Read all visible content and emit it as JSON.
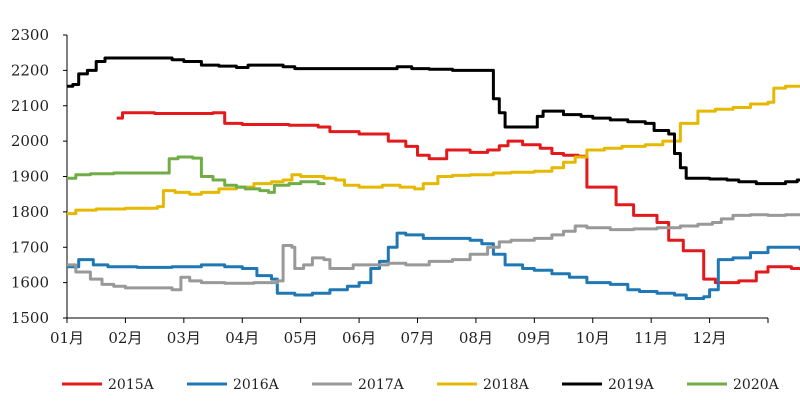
{
  "chart_data": {
    "type": "line",
    "title": "",
    "xlabel": "",
    "ylabel": "",
    "x_ticks": [
      "01月",
      "02月",
      "03月",
      "04月",
      "05月",
      "06月",
      "07月",
      "08月",
      "09月",
      "10月",
      "11月",
      "12月"
    ],
    "ylim": [
      1500,
      2300
    ],
    "y_ticks": [
      1500,
      1600,
      1700,
      1800,
      1900,
      2000,
      2100,
      2200,
      2300
    ],
    "grid": false,
    "legend_position": "bottom",
    "series": [
      {
        "name": "2015A",
        "color": "#e31a1c",
        "points": [
          [
            0.85,
            2065
          ],
          [
            0.95,
            2080
          ],
          [
            1.5,
            2078
          ],
          [
            2.1,
            2078
          ],
          [
            2.5,
            2080
          ],
          [
            2.7,
            2050
          ],
          [
            3.0,
            2047
          ],
          [
            3.8,
            2045
          ],
          [
            4.3,
            2040
          ],
          [
            4.5,
            2027
          ],
          [
            5.0,
            2020
          ],
          [
            5.5,
            2000
          ],
          [
            5.8,
            1985
          ],
          [
            6.0,
            1960
          ],
          [
            6.2,
            1950
          ],
          [
            6.5,
            1975
          ],
          [
            6.9,
            1968
          ],
          [
            7.2,
            1975
          ],
          [
            7.4,
            1987
          ],
          [
            7.55,
            2000
          ],
          [
            7.8,
            1990
          ],
          [
            8.1,
            1980
          ],
          [
            8.3,
            1965
          ],
          [
            8.5,
            1960
          ],
          [
            8.75,
            1957
          ],
          [
            8.9,
            1870
          ],
          [
            9.4,
            1820
          ],
          [
            9.7,
            1790
          ],
          [
            10.1,
            1770
          ],
          [
            10.3,
            1720
          ],
          [
            10.55,
            1690
          ],
          [
            10.9,
            1610
          ],
          [
            11.1,
            1600
          ],
          [
            11.5,
            1605
          ],
          [
            11.8,
            1630
          ],
          [
            12.0,
            1645
          ],
          [
            12.4,
            1640
          ],
          [
            12.6,
            1650
          ]
        ]
      },
      {
        "name": "2016A",
        "color": "#1f78b4",
        "points": [
          [
            0.0,
            1645
          ],
          [
            0.2,
            1665
          ],
          [
            0.45,
            1650
          ],
          [
            0.7,
            1645
          ],
          [
            1.2,
            1643
          ],
          [
            1.8,
            1645
          ],
          [
            2.3,
            1650
          ],
          [
            2.7,
            1645
          ],
          [
            3.0,
            1640
          ],
          [
            3.25,
            1620
          ],
          [
            3.5,
            1610
          ],
          [
            3.6,
            1570
          ],
          [
            3.9,
            1565
          ],
          [
            4.2,
            1570
          ],
          [
            4.5,
            1580
          ],
          [
            4.8,
            1590
          ],
          [
            5.0,
            1600
          ],
          [
            5.2,
            1640
          ],
          [
            5.35,
            1660
          ],
          [
            5.5,
            1700
          ],
          [
            5.65,
            1740
          ],
          [
            5.8,
            1735
          ],
          [
            6.1,
            1725
          ],
          [
            6.5,
            1725
          ],
          [
            6.9,
            1720
          ],
          [
            7.1,
            1710
          ],
          [
            7.3,
            1680
          ],
          [
            7.5,
            1650
          ],
          [
            7.8,
            1640
          ],
          [
            8.0,
            1635
          ],
          [
            8.3,
            1625
          ],
          [
            8.6,
            1615
          ],
          [
            8.9,
            1600
          ],
          [
            9.3,
            1595
          ],
          [
            9.6,
            1580
          ],
          [
            9.8,
            1575
          ],
          [
            10.1,
            1570
          ],
          [
            10.4,
            1565
          ],
          [
            10.6,
            1555
          ],
          [
            10.9,
            1560
          ],
          [
            11.0,
            1580
          ],
          [
            11.15,
            1665
          ],
          [
            11.4,
            1670
          ],
          [
            11.7,
            1685
          ],
          [
            12.0,
            1700
          ],
          [
            12.3,
            1700
          ],
          [
            12.55,
            1695
          ],
          [
            12.65,
            1665
          ]
        ]
      },
      {
        "name": "2017A",
        "color": "#999999",
        "points": [
          [
            0.0,
            1650
          ],
          [
            0.15,
            1630
          ],
          [
            0.4,
            1610
          ],
          [
            0.6,
            1595
          ],
          [
            0.8,
            1590
          ],
          [
            1.0,
            1585
          ],
          [
            1.5,
            1585
          ],
          [
            1.8,
            1580
          ],
          [
            1.95,
            1615
          ],
          [
            2.1,
            1605
          ],
          [
            2.3,
            1600
          ],
          [
            2.7,
            1598
          ],
          [
            3.2,
            1600
          ],
          [
            3.5,
            1600
          ],
          [
            3.6,
            1605
          ],
          [
            3.7,
            1705
          ],
          [
            3.85,
            1700
          ],
          [
            3.9,
            1640
          ],
          [
            4.05,
            1650
          ],
          [
            4.2,
            1670
          ],
          [
            4.4,
            1665
          ],
          [
            4.5,
            1640
          ],
          [
            4.7,
            1640
          ],
          [
            4.9,
            1650
          ],
          [
            5.1,
            1650
          ],
          [
            5.5,
            1655
          ],
          [
            5.8,
            1650
          ],
          [
            6.2,
            1660
          ],
          [
            6.6,
            1665
          ],
          [
            6.9,
            1680
          ],
          [
            7.2,
            1700
          ],
          [
            7.4,
            1715
          ],
          [
            7.6,
            1720
          ],
          [
            8.0,
            1725
          ],
          [
            8.3,
            1735
          ],
          [
            8.5,
            1745
          ],
          [
            8.7,
            1760
          ],
          [
            8.9,
            1755
          ],
          [
            9.3,
            1750
          ],
          [
            9.7,
            1752
          ],
          [
            10.1,
            1755
          ],
          [
            10.5,
            1760
          ],
          [
            10.8,
            1765
          ],
          [
            11.05,
            1770
          ],
          [
            11.2,
            1780
          ],
          [
            11.4,
            1790
          ],
          [
            11.7,
            1792
          ],
          [
            12.0,
            1790
          ],
          [
            12.3,
            1792
          ],
          [
            12.65,
            1790
          ]
        ]
      },
      {
        "name": "2018A",
        "color": "#e6b800",
        "points": [
          [
            0.0,
            1795
          ],
          [
            0.15,
            1805
          ],
          [
            0.5,
            1808
          ],
          [
            1.0,
            1810
          ],
          [
            1.4,
            1810
          ],
          [
            1.55,
            1815
          ],
          [
            1.65,
            1860
          ],
          [
            1.85,
            1855
          ],
          [
            2.1,
            1850
          ],
          [
            2.3,
            1855
          ],
          [
            2.6,
            1865
          ],
          [
            2.9,
            1870
          ],
          [
            3.2,
            1880
          ],
          [
            3.5,
            1885
          ],
          [
            3.7,
            1890
          ],
          [
            3.85,
            1905
          ],
          [
            4.0,
            1900
          ],
          [
            4.4,
            1895
          ],
          [
            4.6,
            1890
          ],
          [
            4.75,
            1875
          ],
          [
            5.0,
            1870
          ],
          [
            5.2,
            1870
          ],
          [
            5.4,
            1875
          ],
          [
            5.7,
            1870
          ],
          [
            5.95,
            1865
          ],
          [
            6.1,
            1880
          ],
          [
            6.35,
            1900
          ],
          [
            6.6,
            1903
          ],
          [
            6.9,
            1905
          ],
          [
            7.3,
            1910
          ],
          [
            7.6,
            1912
          ],
          [
            8.0,
            1915
          ],
          [
            8.3,
            1925
          ],
          [
            8.5,
            1940
          ],
          [
            8.7,
            1955
          ],
          [
            8.9,
            1975
          ],
          [
            9.2,
            1980
          ],
          [
            9.5,
            1985
          ],
          [
            9.9,
            1990
          ],
          [
            10.2,
            2000
          ],
          [
            10.5,
            2050
          ],
          [
            10.8,
            2085
          ],
          [
            11.1,
            2090
          ],
          [
            11.4,
            2095
          ],
          [
            11.7,
            2105
          ],
          [
            12.0,
            2110
          ],
          [
            12.1,
            2150
          ],
          [
            12.3,
            2155
          ],
          [
            12.65,
            2155
          ]
        ]
      },
      {
        "name": "2019A",
        "color": "#000000",
        "points": [
          [
            0.0,
            2155
          ],
          [
            0.1,
            2160
          ],
          [
            0.2,
            2190
          ],
          [
            0.35,
            2200
          ],
          [
            0.5,
            2225
          ],
          [
            0.65,
            2235
          ],
          [
            1.0,
            2235
          ],
          [
            1.3,
            2235
          ],
          [
            1.65,
            2235
          ],
          [
            1.8,
            2230
          ],
          [
            2.0,
            2225
          ],
          [
            2.3,
            2215
          ],
          [
            2.6,
            2212
          ],
          [
            2.9,
            2208
          ],
          [
            3.1,
            2215
          ],
          [
            3.5,
            2215
          ],
          [
            3.7,
            2210
          ],
          [
            3.9,
            2205
          ],
          [
            4.3,
            2205
          ],
          [
            4.8,
            2205
          ],
          [
            5.3,
            2205
          ],
          [
            5.5,
            2205
          ],
          [
            5.65,
            2210
          ],
          [
            5.9,
            2205
          ],
          [
            6.2,
            2203
          ],
          [
            6.6,
            2200
          ],
          [
            7.0,
            2200
          ],
          [
            7.2,
            2200
          ],
          [
            7.3,
            2120
          ],
          [
            7.4,
            2080
          ],
          [
            7.5,
            2040
          ],
          [
            7.8,
            2040
          ],
          [
            8.0,
            2040
          ],
          [
            8.05,
            2070
          ],
          [
            8.15,
            2085
          ],
          [
            8.3,
            2085
          ],
          [
            8.5,
            2075
          ],
          [
            8.8,
            2070
          ],
          [
            9.0,
            2065
          ],
          [
            9.3,
            2060
          ],
          [
            9.6,
            2055
          ],
          [
            9.9,
            2050
          ],
          [
            10.05,
            2030
          ],
          [
            10.3,
            2020
          ],
          [
            10.4,
            1965
          ],
          [
            10.5,
            1925
          ],
          [
            10.6,
            1895
          ],
          [
            11.0,
            1893
          ],
          [
            11.3,
            1890
          ],
          [
            11.5,
            1885
          ],
          [
            11.8,
            1880
          ],
          [
            12.1,
            1880
          ],
          [
            12.3,
            1885
          ],
          [
            12.5,
            1890
          ],
          [
            12.65,
            1898
          ]
        ]
      },
      {
        "name": "2020A",
        "color": "#70ad47",
        "points": [
          [
            0.0,
            1895
          ],
          [
            0.15,
            1905
          ],
          [
            0.4,
            1908
          ],
          [
            0.8,
            1910
          ],
          [
            1.2,
            1910
          ],
          [
            1.6,
            1910
          ],
          [
            1.75,
            1950
          ],
          [
            1.9,
            1955
          ],
          [
            2.15,
            1952
          ],
          [
            2.3,
            1900
          ],
          [
            2.5,
            1890
          ],
          [
            2.7,
            1875
          ],
          [
            2.9,
            1870
          ],
          [
            3.05,
            1865
          ],
          [
            3.3,
            1860
          ],
          [
            3.45,
            1855
          ],
          [
            3.55,
            1875
          ],
          [
            3.8,
            1880
          ],
          [
            4.0,
            1885
          ],
          [
            4.3,
            1880
          ],
          [
            4.4,
            1876
          ]
        ]
      }
    ]
  }
}
